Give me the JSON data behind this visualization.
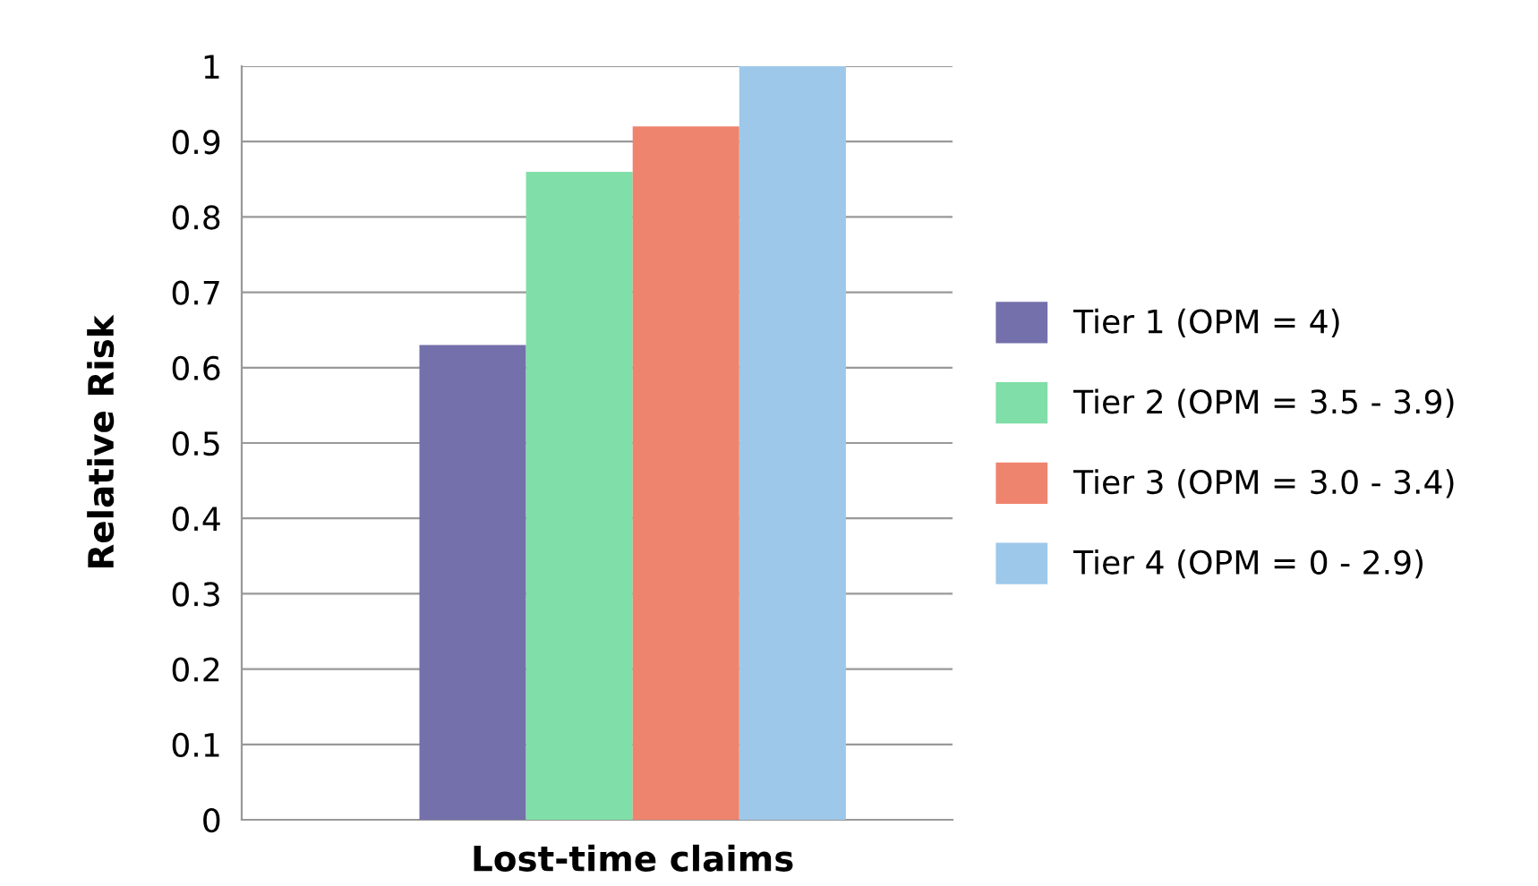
{
  "chart_data": {
    "type": "bar",
    "ylabel": "Relative Risk",
    "categories": [
      "Lost-time claims"
    ],
    "series": [
      {
        "name": "Tier 1 (OPM = 4)",
        "color": "#7470ab",
        "values": [
          0.63
        ]
      },
      {
        "name": "Tier 2 (OPM = 3.5 - 3.9)",
        "color": "#80dea8",
        "values": [
          0.86
        ]
      },
      {
        "name": "Tier 3 (OPM = 3.0 - 3.4)",
        "color": "#ef846e",
        "values": [
          0.92
        ]
      },
      {
        "name": "Tier 4 (OPM = 0 - 2.9)",
        "color": "#9ec8ea",
        "values": [
          1.0
        ]
      }
    ],
    "ylim": [
      0,
      1
    ],
    "yticks": [
      0,
      0.1,
      0.2,
      0.3,
      0.4,
      0.5,
      0.6,
      0.7,
      0.8,
      0.9,
      1
    ],
    "grid": "y",
    "legend": "right"
  }
}
